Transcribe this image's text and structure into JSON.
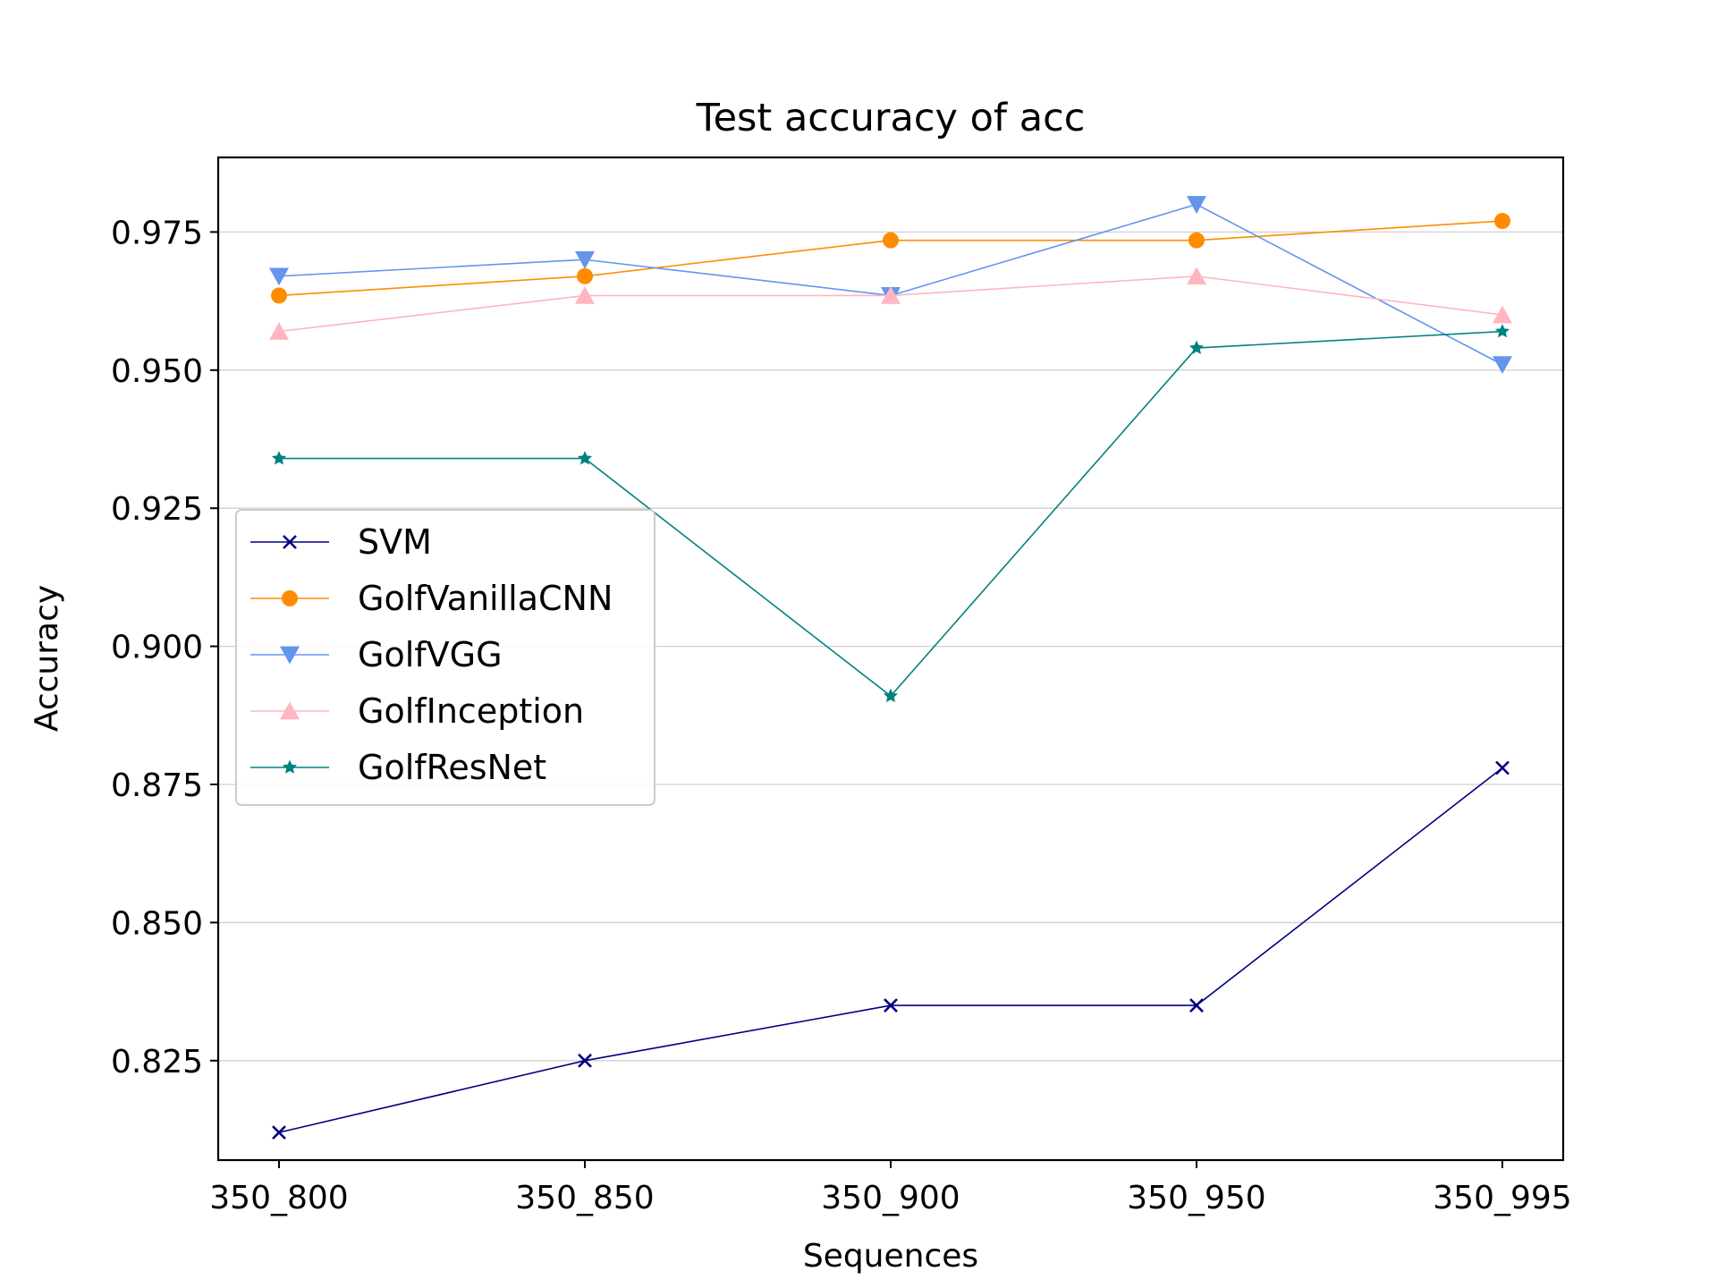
{
  "chart_data": {
    "type": "line",
    "title": "Test accuracy of acc",
    "xlabel": "Sequences",
    "ylabel": "Accuracy",
    "categories": [
      "350_800",
      "350_850",
      "350_900",
      "350_950",
      "350_995"
    ],
    "ylim": [
      0.807,
      0.9885
    ],
    "yticks": [
      "0.825",
      "0.850",
      "0.875",
      "0.900",
      "0.925",
      "0.950",
      "0.975"
    ],
    "grid": "horizontal",
    "legend_position": "center-left",
    "series": [
      {
        "name": "SVM",
        "color": "#000080",
        "marker": "x",
        "values": [
          0.812,
          0.825,
          0.835,
          0.835,
          0.878
        ]
      },
      {
        "name": "GolfVanillaCNN",
        "color": "#ff8c00",
        "marker": "circle",
        "values": [
          0.9635,
          0.967,
          0.9735,
          0.9735,
          0.977
        ]
      },
      {
        "name": "GolfVGG",
        "color": "#6495ed",
        "marker": "triangle-down",
        "values": [
          0.967,
          0.97,
          0.9635,
          0.98,
          0.951
        ]
      },
      {
        "name": "GolfInception",
        "color": "#ffb6c1",
        "marker": "triangle-up",
        "values": [
          0.957,
          0.9635,
          0.9635,
          0.967,
          0.96
        ]
      },
      {
        "name": "GolfResNet",
        "color": "#008080",
        "marker": "star",
        "values": [
          0.934,
          0.934,
          0.891,
          0.954,
          0.957
        ]
      }
    ]
  }
}
